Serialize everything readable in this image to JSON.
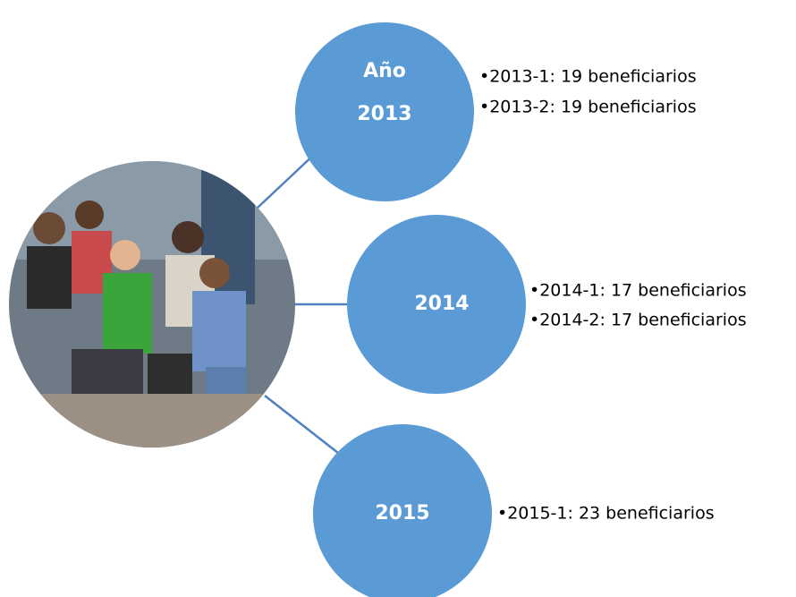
{
  "nodes": [
    {
      "label": [
        "Año",
        "2013"
      ],
      "items": [
        "•2013-1: 19 beneficiarios",
        "•2013-2: 19 beneficiarios"
      ]
    },
    {
      "label": [
        "2014"
      ],
      "items": [
        "•2014-1: 17 beneficiarios",
        "•2014-2: 17 beneficiarios"
      ]
    },
    {
      "label": [
        "2015"
      ],
      "items": [
        "•2015-1: 23 beneficiarios"
      ]
    }
  ]
}
